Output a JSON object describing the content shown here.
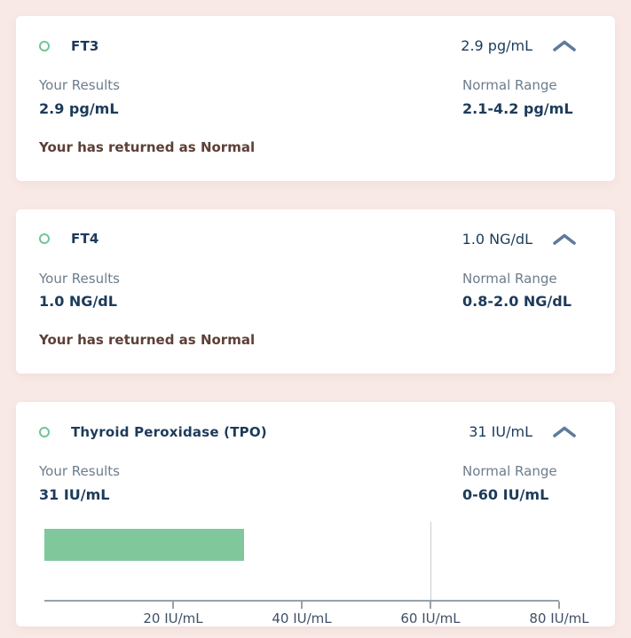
{
  "theme": {
    "page_background": "#f9e9e6",
    "card_background": "#ffffff",
    "title_color": "#1c3b5a",
    "label_color": "#6d7d8b",
    "status_color": "#5d4037",
    "accent_green": "#70c698",
    "chevron_color": "#5e7b9a",
    "axis_color": "#98a1a8"
  },
  "cards": [
    {
      "name": "FT3",
      "header_value": "2.9 pg/mL",
      "your_results_label": "Your Results",
      "your_results_value": "2.9 pg/mL",
      "normal_range_label": "Normal Range",
      "normal_range_value": "2.1-4.2 pg/mL",
      "status": "Your has returned as Normal"
    },
    {
      "name": "FT4",
      "header_value": "1.0 NG/dL",
      "your_results_label": "Your Results",
      "your_results_value": "1.0 NG/dL",
      "normal_range_label": "Normal Range",
      "normal_range_value": "0.8-2.0 NG/dL",
      "status": "Your has returned as Normal"
    },
    {
      "name": "Thyroid Peroxidase (TPO)",
      "header_value": "31 IU/mL",
      "your_results_label": "Your Results",
      "your_results_value": "31 IU/mL",
      "normal_range_label": "Normal Range",
      "normal_range_value": "0-60 IU/mL"
    }
  ],
  "chart_data": {
    "type": "bar",
    "orientation": "horizontal",
    "value": 31,
    "unit": "IU/mL",
    "axis_min": 0,
    "axis_max": 80,
    "axis_ticks": [
      20,
      40,
      60,
      80
    ],
    "tick_labels": [
      "20 IU/mL",
      "40 IU/mL",
      "60 IU/mL",
      "80 IU/mL"
    ],
    "normal_range": [
      0,
      60
    ],
    "normal_max_marker": 60,
    "bar_color": "#80c79b"
  }
}
